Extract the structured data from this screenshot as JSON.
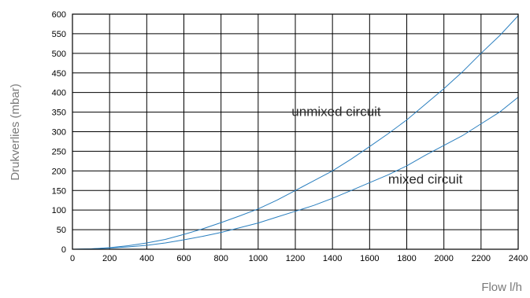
{
  "chart_data": {
    "type": "line",
    "xlabel": "Flow l/h",
    "ylabel": "Drukverlies (mbar)",
    "xlim": [
      0,
      2400
    ],
    "ylim": [
      0,
      600
    ],
    "xticks": [
      0,
      200,
      400,
      600,
      800,
      1000,
      1200,
      1400,
      1600,
      1800,
      2000,
      2200,
      2400
    ],
    "yticks": [
      0,
      50,
      100,
      150,
      200,
      250,
      300,
      350,
      400,
      450,
      500,
      550,
      600
    ],
    "grid": true,
    "legend": "none",
    "line_color": "#2a7fbf",
    "series": [
      {
        "label": "unmixed circuit",
        "x": [
          0,
          100,
          200,
          300,
          400,
          500,
          600,
          700,
          800,
          900,
          1000,
          1100,
          1200,
          1300,
          1400,
          1500,
          1600,
          1700,
          1800,
          1900,
          2000,
          2100,
          2200,
          2300,
          2400
        ],
        "y": [
          0,
          1,
          4,
          9,
          16,
          25,
          38,
          52,
          68,
          85,
          103,
          125,
          150,
          175,
          200,
          230,
          262,
          295,
          330,
          370,
          410,
          453,
          500,
          545,
          596
        ],
        "label_at": [
          1180,
          340
        ]
      },
      {
        "label": "mixed circuit",
        "x": [
          0,
          100,
          200,
          300,
          400,
          500,
          600,
          700,
          800,
          900,
          1000,
          1100,
          1200,
          1300,
          1400,
          1500,
          1600,
          1700,
          1800,
          1900,
          2000,
          2100,
          2200,
          2300,
          2400
        ],
        "y": [
          0,
          1,
          3,
          6,
          10,
          16,
          24,
          33,
          43,
          55,
          67,
          82,
          97,
          112,
          130,
          150,
          170,
          190,
          213,
          240,
          265,
          290,
          320,
          350,
          388
        ],
        "label_at": [
          1700,
          168
        ]
      }
    ]
  }
}
